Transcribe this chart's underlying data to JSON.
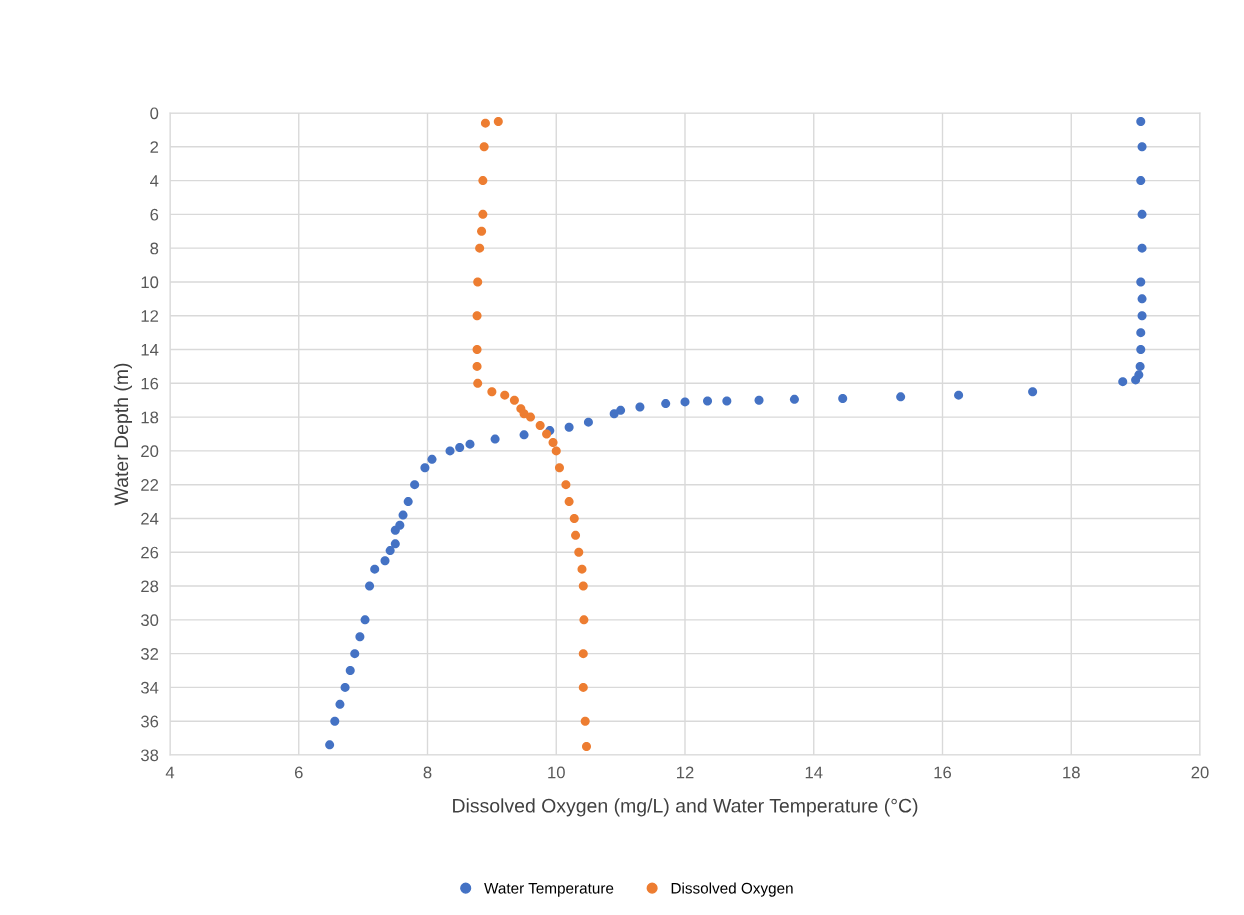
{
  "chart_data": {
    "type": "scatter",
    "xlabel": "Dissolved Oxygen (mg/L) and Water Temperature (°C)",
    "ylabel": "Water Depth (m)",
    "xlim": [
      4,
      20
    ],
    "xticks": [
      4,
      6,
      8,
      10,
      12,
      14,
      16,
      18,
      20
    ],
    "ylim": [
      38,
      0
    ],
    "yticks": [
      0,
      2,
      4,
      6,
      8,
      10,
      12,
      14,
      16,
      18,
      20,
      22,
      24,
      26,
      28,
      30,
      32,
      34,
      36,
      38
    ],
    "grid": true,
    "legend": "bottom",
    "marker": "circle",
    "series": [
      {
        "name": "Water Temperature",
        "color": "#4472c4",
        "x": [
          19.08,
          19.1,
          19.08,
          19.1,
          19.1,
          19.08,
          19.1,
          19.1,
          19.08,
          19.08,
          19.07,
          19.05,
          19.0,
          18.8,
          17.4,
          16.25,
          15.35,
          14.45,
          13.7,
          13.15,
          12.65,
          12.35,
          12.0,
          11.7,
          11.3,
          11.0,
          10.9,
          10.5,
          10.2,
          9.9,
          9.5,
          9.05,
          8.66,
          8.5,
          8.35,
          8.07,
          7.96,
          7.8,
          7.7,
          7.62,
          7.57,
          7.5,
          7.5,
          7.42,
          7.34,
          7.18,
          7.1,
          7.03,
          6.95,
          6.87,
          6.8,
          6.72,
          6.64,
          6.56,
          6.48
        ],
        "values": [
          0.5,
          2,
          4,
          6,
          8,
          10,
          11,
          12,
          13,
          14,
          15,
          15.5,
          15.8,
          15.9,
          16.5,
          16.7,
          16.8,
          16.9,
          16.95,
          17.0,
          17.05,
          17.05,
          17.1,
          17.2,
          17.4,
          17.6,
          17.8,
          18.3,
          18.6,
          18.8,
          19.05,
          19.3,
          19.6,
          19.8,
          20.0,
          20.5,
          21.0,
          22.0,
          23.0,
          23.8,
          24.4,
          24.7,
          25.5,
          25.9,
          26.5,
          27.0,
          28.0,
          30.0,
          31.0,
          32.0,
          33.0,
          34.0,
          35.0,
          36.0,
          37.4
        ]
      },
      {
        "name": "Dissolved Oxygen",
        "color": "#ed7d31",
        "x": [
          9.1,
          8.9,
          8.88,
          8.86,
          8.86,
          8.84,
          8.81,
          8.78,
          8.77,
          8.77,
          8.77,
          8.78,
          9.0,
          9.2,
          9.35,
          9.45,
          9.5,
          9.6,
          9.75,
          9.85,
          9.95,
          10.0,
          10.05,
          10.15,
          10.2,
          10.28,
          10.3,
          10.35,
          10.4,
          10.42,
          10.43,
          10.42,
          10.42,
          10.45,
          10.47
        ],
        "values": [
          0.5,
          0.6,
          2,
          4,
          6,
          7,
          8,
          10,
          12,
          14,
          15,
          16,
          16.5,
          16.7,
          17.0,
          17.5,
          17.8,
          18,
          18.5,
          19,
          19.5,
          20,
          21,
          22,
          23,
          24,
          25,
          26,
          27,
          28,
          30,
          32,
          34,
          36,
          37.5
        ]
      }
    ]
  }
}
